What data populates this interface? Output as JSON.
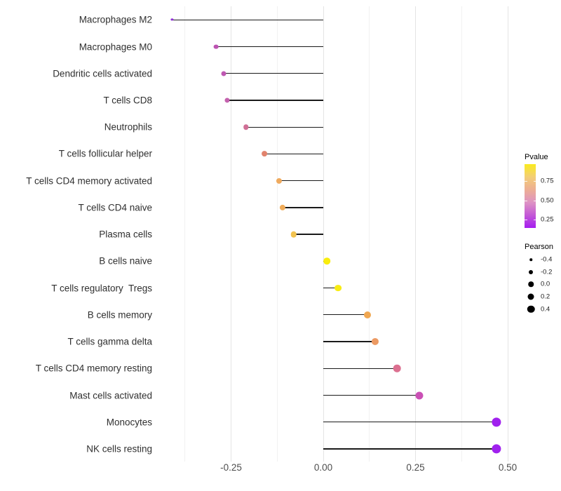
{
  "chart_data": {
    "type": "lollipop",
    "orientation": "horizontal",
    "title": "",
    "xlabel": "",
    "ylabel": "",
    "x_ticks": [
      -0.25,
      0.0,
      0.25,
      0.5
    ],
    "x_tick_labels": [
      "-0.25",
      "0.00",
      "0.25",
      "0.50"
    ],
    "xlim": [
      -0.455,
      0.515
    ],
    "grid": "vertical major and minor gridlines, no horizontal gridlines, white background",
    "points": [
      {
        "category": "Macrophages M2",
        "pearson": -0.41,
        "dot_color": "#9031d8",
        "dot_size": 3.2
      },
      {
        "category": "Macrophages M0",
        "pearson": -0.29,
        "dot_color": "#bc53b2",
        "dot_size": 6.8
      },
      {
        "category": "Dendritic cells activated",
        "pearson": -0.27,
        "dot_color": "#bf58b2",
        "dot_size": 7.0
      },
      {
        "category": "T cells CD8",
        "pearson": -0.26,
        "dot_color": "#c462ae",
        "dot_size": 7.1
      },
      {
        "category": "Neutrophils",
        "pearson": -0.21,
        "dot_color": "#d06f96",
        "dot_size": 7.5
      },
      {
        "category": "T cells follicular helper",
        "pearson": -0.16,
        "dot_color": "#e1836d",
        "dot_size": 7.8
      },
      {
        "category": "T cells CD4 memory activated",
        "pearson": -0.12,
        "dot_color": "#efaa5e",
        "dot_size": 8.1
      },
      {
        "category": "T cells CD4 naive",
        "pearson": -0.11,
        "dot_color": "#f0ac5a",
        "dot_size": 8.2
      },
      {
        "category": "Plasma cells",
        "pearson": -0.08,
        "dot_color": "#f2c351",
        "dot_size": 8.5
      },
      {
        "category": "B cells naive",
        "pearson": 0.01,
        "dot_color": "#f9ed0d",
        "dot_size": 9.6
      },
      {
        "category": "T cells regulatory  Tregs",
        "pearson": 0.04,
        "dot_color": "#f8ec13",
        "dot_size": 9.8
      },
      {
        "category": "B cells memory",
        "pearson": 0.12,
        "dot_color": "#f0a751",
        "dot_size": 10.0
      },
      {
        "category": "T cells gamma delta",
        "pearson": 0.14,
        "dot_color": "#ec9a63",
        "dot_size": 10.1
      },
      {
        "category": "T cells CD4 memory resting",
        "pearson": 0.2,
        "dot_color": "#dc7090",
        "dot_size": 10.6
      },
      {
        "category": "Mast cells activated",
        "pearson": 0.26,
        "dot_color": "#ca50b5",
        "dot_size": 11.1
      },
      {
        "category": "Monocytes",
        "pearson": 0.47,
        "dot_color": "#a021ee",
        "dot_size": 13.2
      },
      {
        "category": "NK cells resting",
        "pearson": 0.47,
        "dot_color": "#a021ee",
        "dot_size": 13.2
      }
    ],
    "legend_position": "right",
    "legends": {
      "pvalue": {
        "title": "Pvalue",
        "tick_labels": [
          "0.75",
          "0.50",
          "0.25"
        ],
        "tick_fractions_from_top": [
          0.26,
          0.57,
          0.87
        ],
        "gradient_top_to_bottom": [
          "#faeb1e",
          "#f3ce76",
          "#edae94",
          "#de93c4",
          "#c358d6",
          "#a51df0"
        ]
      },
      "pearson": {
        "title": "Pearson",
        "items": [
          {
            "label": "-0.4",
            "size": 3.5
          },
          {
            "label": "-0.2",
            "size": 6.0
          },
          {
            "label": "0.0",
            "size": 7.5
          },
          {
            "label": "0.2",
            "size": 9.0
          },
          {
            "label": "0.4",
            "size": 10.5
          }
        ]
      }
    }
  }
}
